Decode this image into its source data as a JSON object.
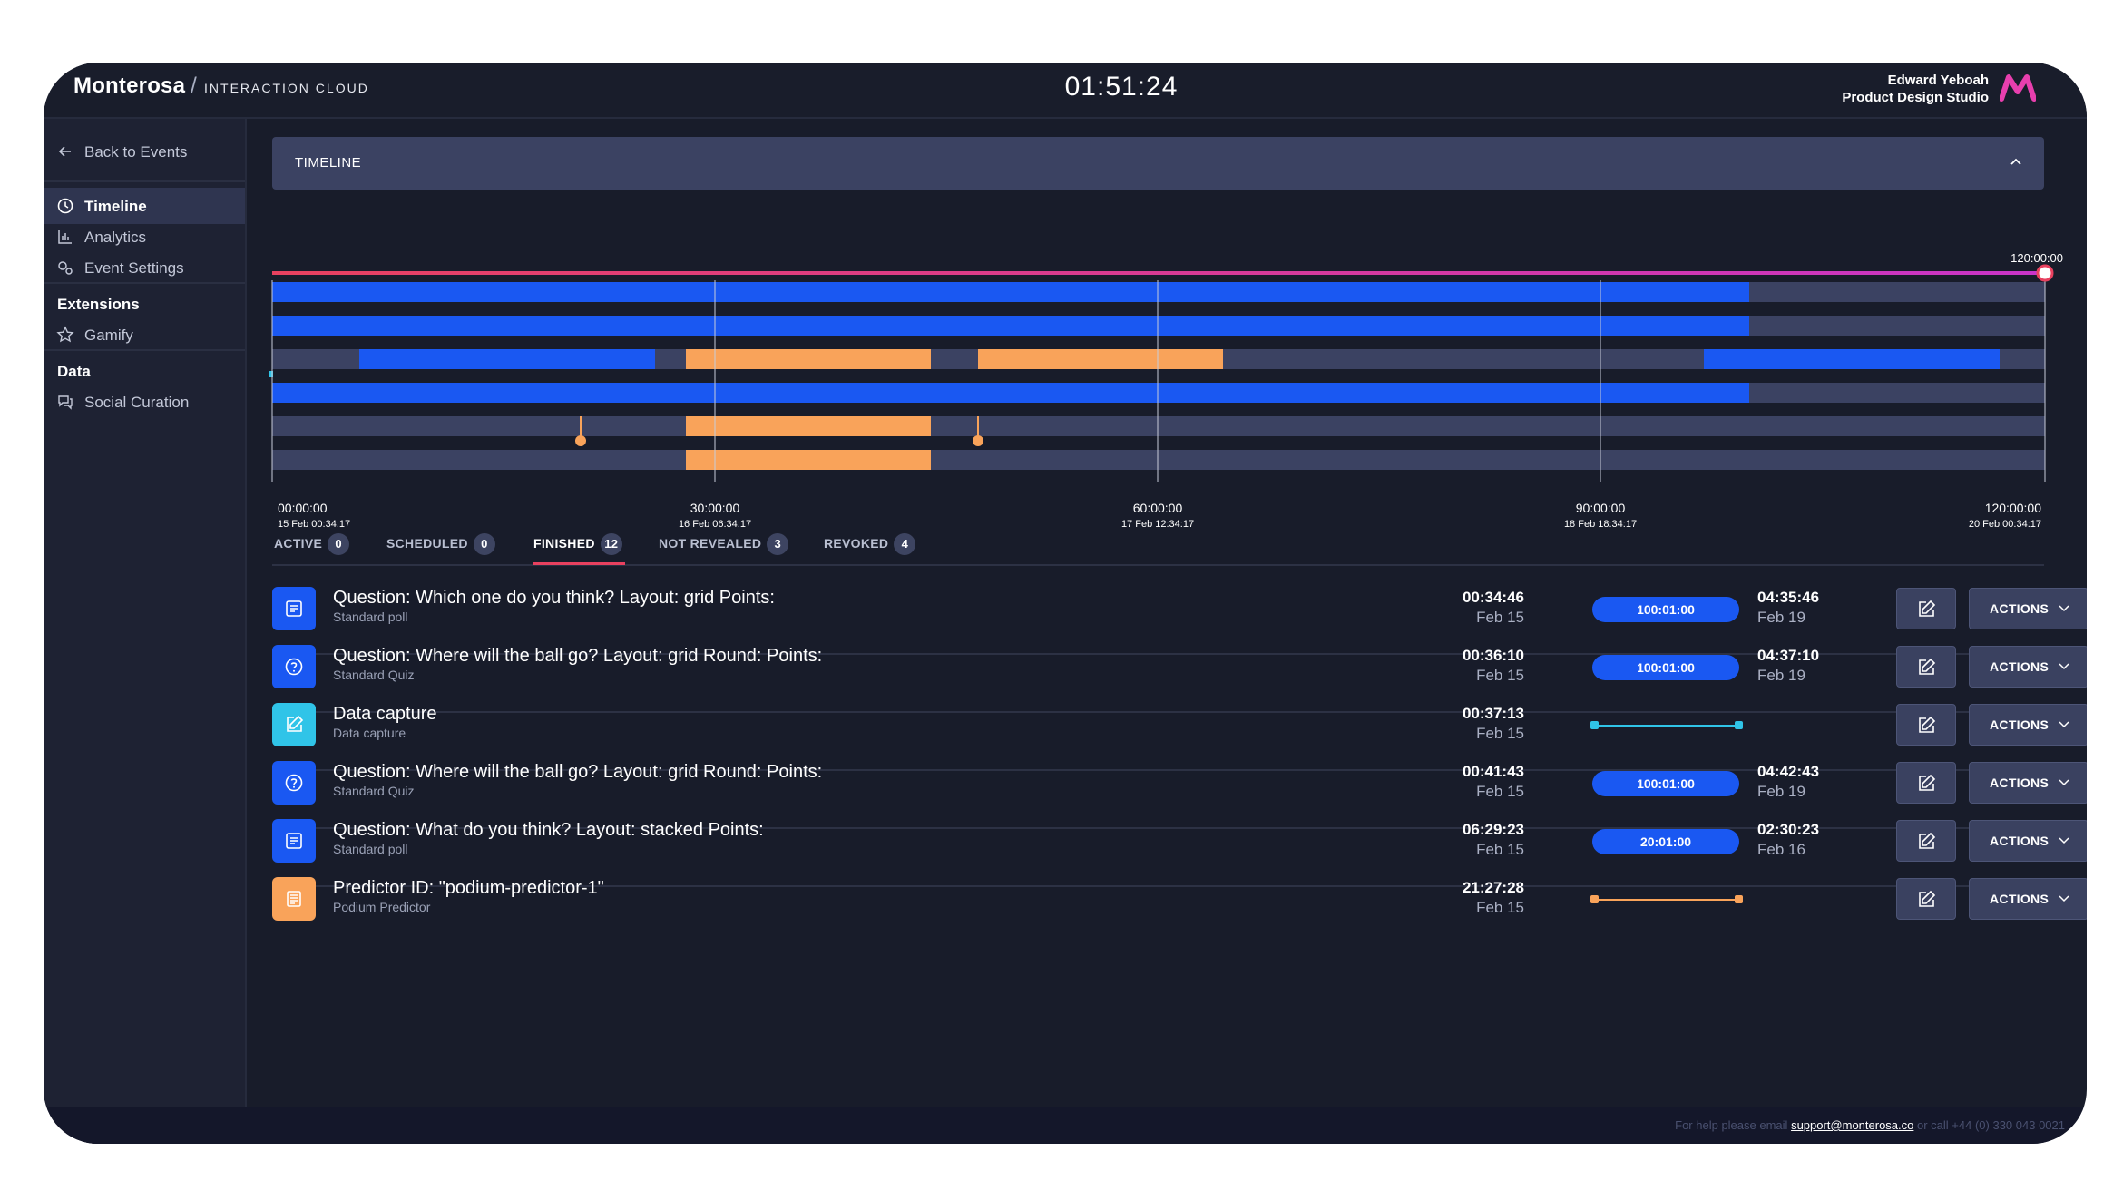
{
  "header": {
    "brand": "Monterosa",
    "brand_sub": "INTERACTION CLOUD",
    "clock": "01:51:24",
    "user_name": "Edward Yeboah",
    "user_org": "Product Design Studio"
  },
  "sidebar": {
    "back": "Back to Events",
    "items": [
      {
        "label": "Timeline",
        "icon": "clock-icon"
      },
      {
        "label": "Analytics",
        "icon": "bar-chart-icon"
      },
      {
        "label": "Event Settings",
        "icon": "gears-icon"
      }
    ],
    "sections": {
      "extensions": "Extensions",
      "gamify": "Gamify",
      "data": "Data",
      "social": "Social Curation"
    }
  },
  "timeline": {
    "title": "TIMELINE",
    "end_label": "120:00:00",
    "ticks": [
      {
        "time": "00:00:00",
        "date": "15 Feb 00:34:17"
      },
      {
        "time": "30:00:00",
        "date": "16 Feb 06:34:17"
      },
      {
        "time": "60:00:00",
        "date": "17 Feb 12:34:17"
      },
      {
        "time": "90:00:00",
        "date": "18 Feb 18:34:17"
      },
      {
        "time": "120:00:00",
        "date": "20 Feb 00:34:17"
      }
    ]
  },
  "tabs": [
    {
      "label": "ACTIVE",
      "count": "0"
    },
    {
      "label": "SCHEDULED",
      "count": "0"
    },
    {
      "label": "FINISHED",
      "count": "12"
    },
    {
      "label": "NOT REVEALED",
      "count": "3"
    },
    {
      "label": "REVOKED",
      "count": "4"
    }
  ],
  "rows": [
    {
      "title": "Question: Which one do you think? Layout: grid Points:",
      "type": "Standard poll",
      "start_time": "00:34:46",
      "start_date": "Feb 15",
      "duration": "100:01:00",
      "reveal_time": "04:35:46",
      "reveal_date": "Feb 19",
      "icon": "poll-icon"
    },
    {
      "title": "Question: Where will the ball go? Layout: grid Round: Points:",
      "type": "Standard Quiz",
      "start_time": "00:36:10",
      "start_date": "Feb 15",
      "duration": "100:01:00",
      "reveal_time": "04:37:10",
      "reveal_date": "Feb 19",
      "icon": "question-icon"
    },
    {
      "title": "Data capture",
      "type": "Data capture",
      "start_time": "00:37:13",
      "start_date": "Feb 15",
      "duration": "",
      "reveal_time": "",
      "reveal_date": "",
      "icon": "edit-icon"
    },
    {
      "title": "Question: Where will the ball go? Layout: grid Round: Points:",
      "type": "Standard Quiz",
      "start_time": "00:41:43",
      "start_date": "Feb 15",
      "duration": "100:01:00",
      "reveal_time": "04:42:43",
      "reveal_date": "Feb 19",
      "icon": "question-icon"
    },
    {
      "title": "Question: What do you think? Layout: stacked Points:",
      "type": "Standard poll",
      "start_time": "06:29:23",
      "start_date": "Feb 15",
      "duration": "20:01:00",
      "reveal_time": "02:30:23",
      "reveal_date": "Feb 16",
      "icon": "poll-icon"
    },
    {
      "title": "Predictor ID: \"podium-predictor-1\"",
      "type": "Podium Predictor",
      "start_time": "21:27:28",
      "start_date": "Feb 15",
      "duration": "",
      "reveal_time": "",
      "reveal_date": "",
      "icon": "predictor-icon"
    }
  ],
  "actions_label": "ACTIONS",
  "footer": {
    "pre": "For help please email",
    "email": "support@monterosa.co",
    "post": "or call +44 (0) 330 043 0021"
  },
  "colors": {
    "background": "#181c2a",
    "panel": "#3b4262",
    "blue": "#1a58f2",
    "orange": "#f9a35a",
    "cyan": "#30c4e8",
    "progress_line": "#e8415f"
  }
}
